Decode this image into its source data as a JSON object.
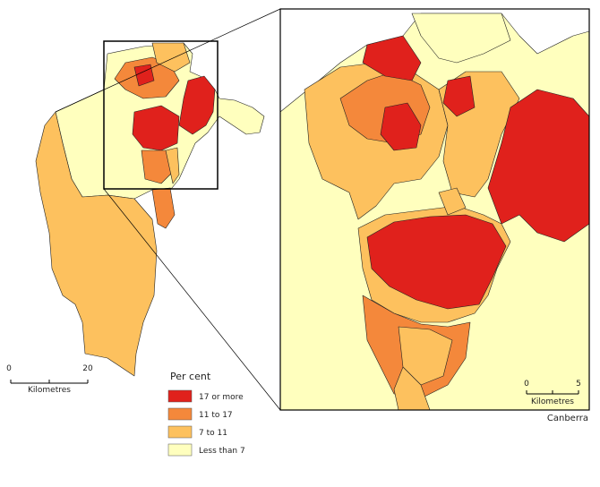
{
  "legend": {
    "title": "Per cent",
    "items": [
      {
        "label": "17 or more",
        "color": "#e0211c"
      },
      {
        "label": "11 to 17",
        "color": "#f4883b"
      },
      {
        "label": "7 to 11",
        "color": "#fdc15e"
      },
      {
        "label": "Less than 7",
        "color": "#ffffbe"
      }
    ]
  },
  "scale_bars": [
    {
      "ticks": [
        0,
        20
      ],
      "unit": "Kilometres"
    },
    {
      "ticks": [
        0,
        5
      ],
      "unit": "Kilometres"
    }
  ],
  "inset_label": "Canberra"
}
